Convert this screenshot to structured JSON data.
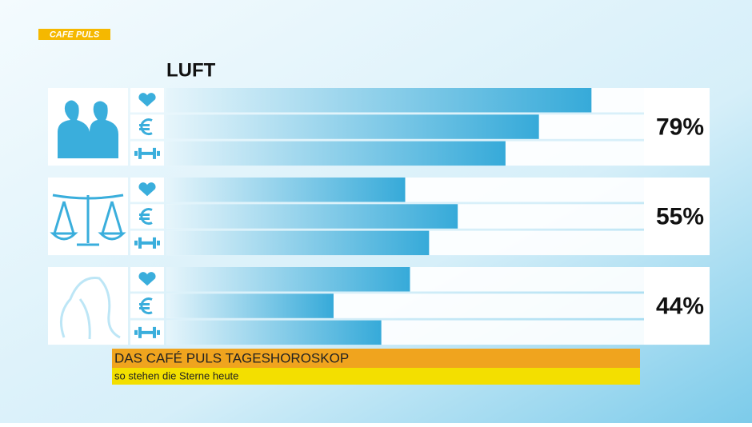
{
  "logo": "CAFE PULS",
  "chart_data": {
    "type": "bar",
    "title": "LUFT",
    "groups": [
      {
        "values": [
          89,
          78,
          71
        ],
        "total": 79,
        "total_label": "79%"
      },
      {
        "values": [
          50,
          61,
          55
        ],
        "total": 55,
        "total_label": "55%"
      },
      {
        "values": [
          51,
          35,
          45
        ],
        "total": 44,
        "total_label": "44%"
      }
    ],
    "xlim": [
      0,
      100
    ],
    "color": "#3aaedc"
  },
  "banner": {
    "title": "DAS CAFÉ PULS TAGESHOROSKOP",
    "subtitle": "so stehen die Sterne heute"
  }
}
